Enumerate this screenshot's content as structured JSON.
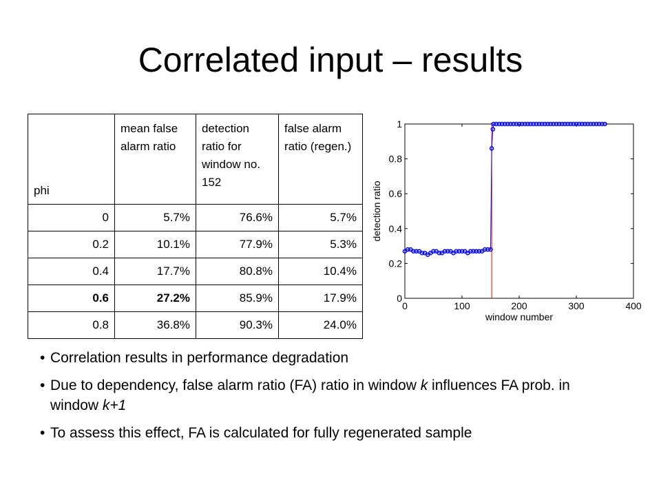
{
  "title": "Correlated input – results",
  "table": {
    "header": [
      "phi",
      "mean false alarm ratio",
      "detection ratio for window no. 152",
      "false alarm ratio (regen.)"
    ],
    "rows": [
      [
        "0",
        "5.7%",
        "76.6%",
        "5.7%"
      ],
      [
        "0.2",
        "10.1%",
        "77.9%",
        "5.3%"
      ],
      [
        "0.4",
        "17.7%",
        "80.8%",
        "10.4%"
      ],
      [
        "0.6",
        "27.2%",
        "85.9%",
        "17.9%"
      ],
      [
        "0.8",
        "36.8%",
        "90.3%",
        "24.0%"
      ]
    ],
    "emphasis": {
      "row": 3,
      "columns": [
        0,
        1
      ]
    }
  },
  "chart_data": {
    "type": "line",
    "x_label": "window number",
    "y_label": "detection ratio",
    "x": [
      0,
      5,
      10,
      15,
      20,
      25,
      30,
      35,
      40,
      45,
      50,
      55,
      60,
      65,
      70,
      75,
      80,
      85,
      90,
      95,
      100,
      105,
      110,
      115,
      120,
      125,
      130,
      135,
      140,
      145,
      150,
      152,
      154,
      155,
      160,
      165,
      170,
      175,
      180,
      185,
      190,
      195,
      200,
      205,
      210,
      215,
      220,
      225,
      230,
      235,
      240,
      245,
      250,
      255,
      260,
      265,
      270,
      275,
      280,
      285,
      290,
      295,
      300,
      305,
      310,
      315,
      320,
      325,
      330,
      335,
      340,
      345,
      350
    ],
    "values": [
      0.27,
      0.28,
      0.28,
      0.27,
      0.27,
      0.27,
      0.26,
      0.26,
      0.25,
      0.26,
      0.27,
      0.27,
      0.26,
      0.26,
      0.27,
      0.27,
      0.27,
      0.26,
      0.27,
      0.27,
      0.27,
      0.27,
      0.26,
      0.27,
      0.27,
      0.27,
      0.27,
      0.27,
      0.28,
      0.28,
      0.28,
      0.86,
      0.97,
      1,
      1,
      1,
      1,
      1,
      1,
      1,
      1,
      1,
      1,
      1,
      1,
      1,
      1,
      1,
      1,
      1,
      1,
      1,
      1,
      1,
      1,
      1,
      1,
      1,
      1,
      1,
      1,
      1,
      1,
      1,
      1,
      1,
      1,
      1,
      1,
      1,
      1,
      1,
      1
    ],
    "color": "#0000ff",
    "vline": {
      "x": 152,
      "color": "#ff0000"
    },
    "xlim": [
      0,
      400
    ],
    "xticks": [
      0,
      100,
      200,
      300,
      400
    ],
    "ylim": [
      0,
      1
    ],
    "yticks": [
      0,
      0.2,
      0.4,
      0.6,
      0.8,
      1
    ]
  },
  "bullets": [
    [
      {
        "text": "Correlation results in performance degradation"
      }
    ],
    [
      {
        "text": "Due to dependency, false alarm ratio (FA) ratio in window "
      },
      {
        "text": "k",
        "italic": true
      },
      {
        "text": " influences FA prob. in window "
      },
      {
        "text": "k+1",
        "italic": true
      }
    ],
    [
      {
        "text": "To assess this effect, FA is calculated for fully regenerated sample"
      }
    ]
  ]
}
